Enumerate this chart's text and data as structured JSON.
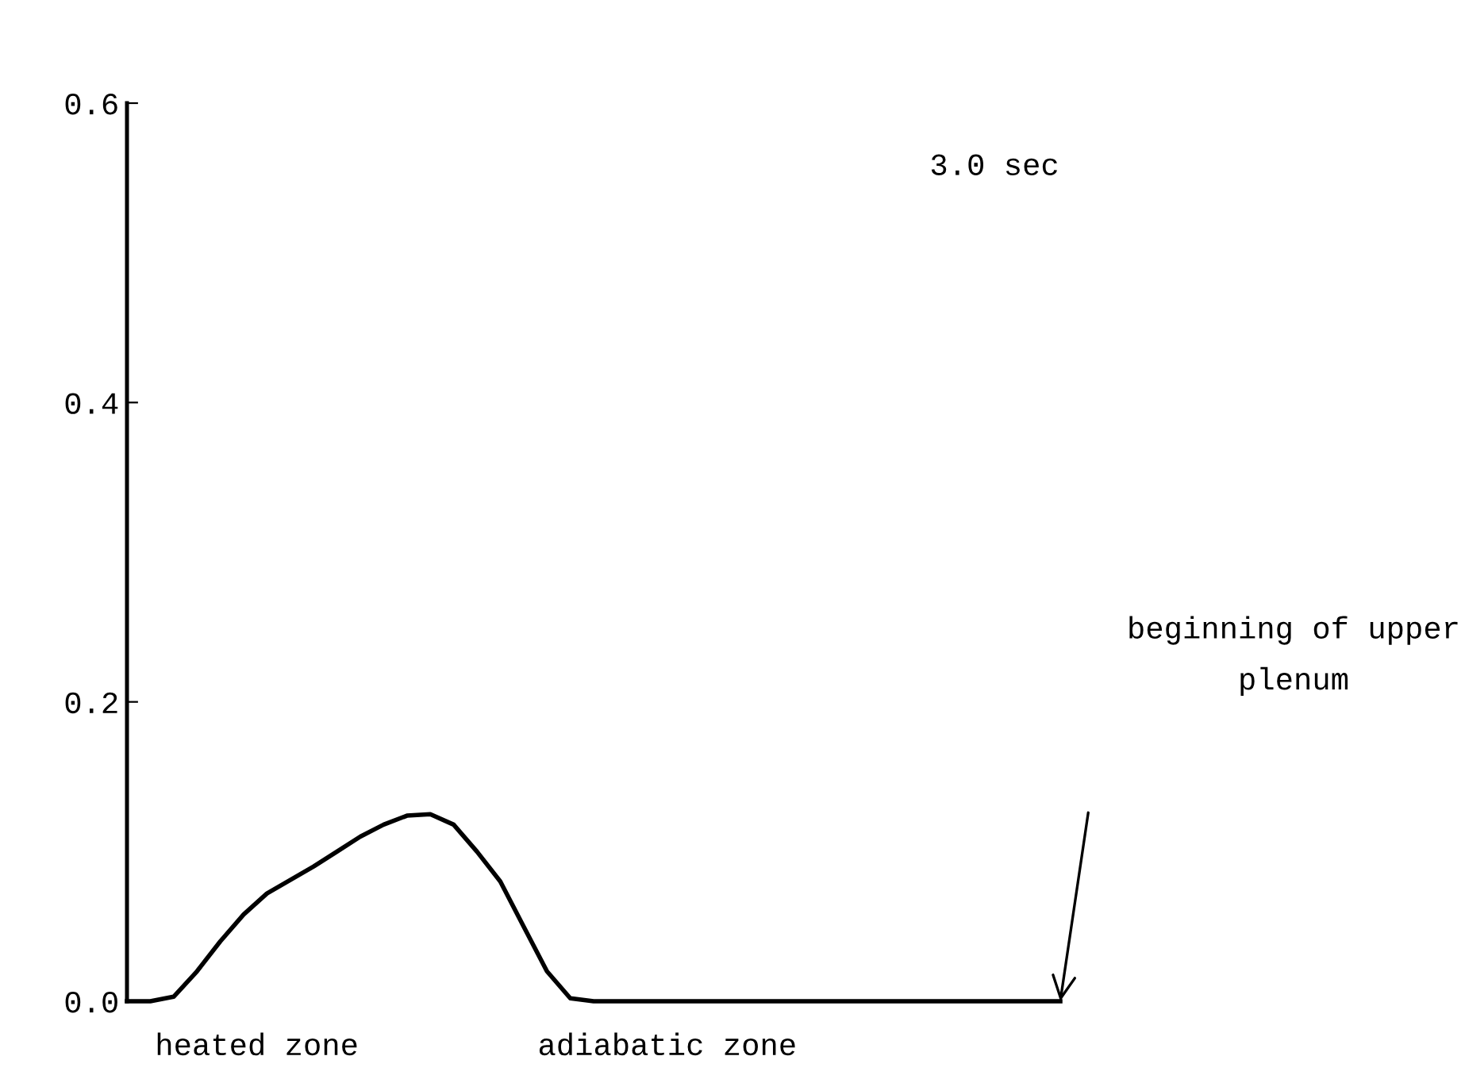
{
  "chart_data": {
    "type": "line",
    "categories": [
      null,
      null,
      null,
      null,
      null,
      null,
      null,
      null,
      null,
      null,
      null,
      null,
      null,
      null,
      null,
      null,
      null,
      null,
      null,
      null,
      null,
      null,
      null,
      null,
      null,
      null,
      null,
      null,
      null,
      null,
      null,
      null,
      null,
      null,
      null,
      null,
      null,
      null,
      null,
      null,
      null
    ],
    "values": [
      0,
      0,
      0.003,
      0.02,
      0.04,
      0.058,
      0.072,
      0.081,
      0.09,
      0.1,
      0.11,
      0.118,
      0.124,
      0.125,
      0.118,
      0.1,
      0.08,
      0.05,
      0.02,
      0.002,
      0,
      0,
      0,
      0,
      0,
      0,
      0,
      0,
      0,
      0,
      0,
      0,
      0,
      0,
      0,
      0,
      0,
      0,
      0,
      0,
      0
    ],
    "color": "#000000",
    "ylim": [
      0,
      0.6
    ],
    "yticks": [
      {
        "value": 0,
        "label": "0.0"
      },
      {
        "value": 0.2,
        "label": "0.2"
      },
      {
        "value": 0.4,
        "label": "0.4"
      },
      {
        "value": 0.6,
        "label": "0.6"
      }
    ],
    "tick_labels": "y",
    "grid": false,
    "marker": "none",
    "line_style": "solid",
    "annotations": [
      "3.0 sec",
      "heated zone",
      "adiabatic zone",
      "beginning of upper\nplenum"
    ]
  }
}
